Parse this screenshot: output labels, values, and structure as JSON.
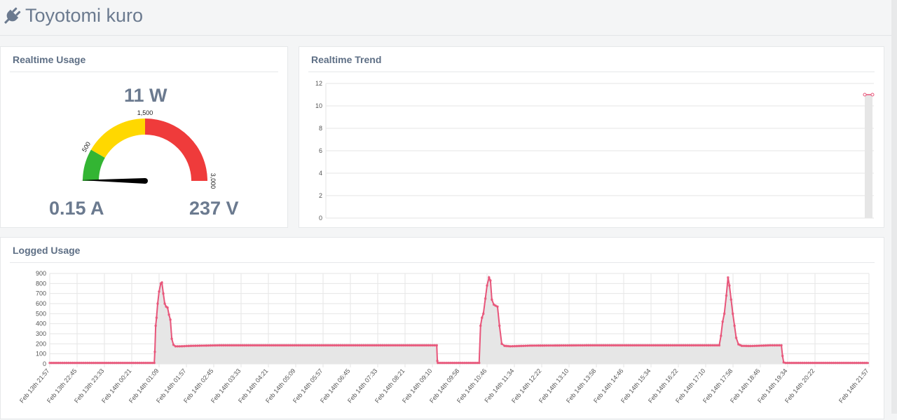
{
  "header": {
    "title": "Toyotomi kuro",
    "icon": "plug-icon"
  },
  "realtime_usage": {
    "title": "Realtime Usage",
    "watts": "11 W",
    "amps": "0.15 A",
    "volts": "237 V",
    "gauge": {
      "value": 11,
      "min": 0,
      "max": 3000,
      "tick_labels": [
        "500",
        "1,500",
        "3,000"
      ],
      "bands": [
        {
          "from": 0,
          "to": 500,
          "color": "#33b533"
        },
        {
          "from": 500,
          "to": 1500,
          "color": "#ffd800"
        },
        {
          "from": 1500,
          "to": 3000,
          "color": "#ef3b3b"
        }
      ]
    }
  },
  "realtime_trend": {
    "title": "Realtime Trend",
    "chart_data": {
      "type": "area",
      "y_ticks": [
        "0",
        "2",
        "4",
        "6",
        "8",
        "10",
        "12"
      ],
      "ylim": [
        0,
        12
      ],
      "series": [
        {
          "values": [
            11,
            11
          ]
        }
      ],
      "line_color": "#e8557a",
      "fill_color": "#e6e6e6"
    }
  },
  "logged_usage": {
    "title": "Logged Usage",
    "chart_data": {
      "type": "area",
      "y_ticks": [
        "0",
        "100",
        "200",
        "300",
        "400",
        "500",
        "600",
        "700",
        "800",
        "900"
      ],
      "ylim": [
        0,
        900
      ],
      "x_labels": [
        "Feb 13th 21:57",
        "Feb 13th 22:45",
        "Feb 13th 23:33",
        "Feb 14th 00:21",
        "Feb 14th 01:09",
        "Feb 14th 01:57",
        "Feb 14th 02:45",
        "Feb 14th 03:33",
        "Feb 14th 04:21",
        "Feb 14th 05:09",
        "Feb 14th 05:57",
        "Feb 14th 06:45",
        "Feb 14th 07:33",
        "Feb 14th 08:21",
        "Feb 14th 09:10",
        "Feb 14th 09:58",
        "Feb 14th 10:46",
        "Feb 14th 11:34",
        "Feb 14th 12:22",
        "Feb 14th 13:10",
        "Feb 14th 13:58",
        "Feb 14th 14:46",
        "Feb 14th 15:34",
        "Feb 14th 16:22",
        "Feb 14th 17:10",
        "Feb 14th 17:58",
        "Feb 14th 18:46",
        "Feb 14th 19:34",
        "Feb 14th 20:22",
        "Feb 14th 21:57"
      ],
      "series": [
        {
          "points": [
            [
              0,
              10
            ],
            [
              3.7,
              10
            ],
            [
              3.72,
              120
            ],
            [
              3.75,
              380
            ],
            [
              3.78,
              460
            ],
            [
              3.82,
              600
            ],
            [
              3.87,
              720
            ],
            [
              3.93,
              800
            ],
            [
              3.97,
              810
            ],
            [
              4.02,
              700
            ],
            [
              4.07,
              600
            ],
            [
              4.12,
              570
            ],
            [
              4.17,
              560
            ],
            [
              4.22,
              490
            ],
            [
              4.27,
              440
            ],
            [
              4.32,
              250
            ],
            [
              4.38,
              190
            ],
            [
              4.45,
              175
            ],
            [
              4.6,
              175
            ],
            [
              5,
              180
            ],
            [
              6,
              185
            ],
            [
              8,
              185
            ],
            [
              10,
              185
            ],
            [
              12,
              185
            ],
            [
              13.7,
              185
            ],
            [
              13.72,
              30
            ],
            [
              13.74,
              10
            ],
            [
              15.2,
              10
            ],
            [
              15.25,
              380
            ],
            [
              15.3,
              460
            ],
            [
              15.35,
              500
            ],
            [
              15.42,
              650
            ],
            [
              15.48,
              780
            ],
            [
              15.55,
              860
            ],
            [
              15.6,
              830
            ],
            [
              15.65,
              640
            ],
            [
              15.72,
              590
            ],
            [
              15.78,
              580
            ],
            [
              15.85,
              570
            ],
            [
              15.92,
              380
            ],
            [
              16,
              200
            ],
            [
              16.1,
              180
            ],
            [
              16.3,
              175
            ],
            [
              17,
              182
            ],
            [
              19,
              185
            ],
            [
              21,
              185
            ],
            [
              23.7,
              185
            ],
            [
              23.76,
              280
            ],
            [
              23.82,
              420
            ],
            [
              23.88,
              500
            ],
            [
              23.95,
              680
            ],
            [
              24.01,
              860
            ],
            [
              24.06,
              780
            ],
            [
              24.12,
              640
            ],
            [
              24.18,
              500
            ],
            [
              24.24,
              380
            ],
            [
              24.3,
              260
            ],
            [
              24.38,
              195
            ],
            [
              24.5,
              180
            ],
            [
              24.8,
              178
            ],
            [
              25.5,
              185
            ],
            [
              25.9,
              185
            ],
            [
              25.94,
              80
            ],
            [
              25.98,
              15
            ],
            [
              26.05,
              10
            ],
            [
              29,
              10
            ]
          ]
        }
      ],
      "line_color": "#e8557a",
      "fill_color": "#e6e6e6"
    }
  }
}
